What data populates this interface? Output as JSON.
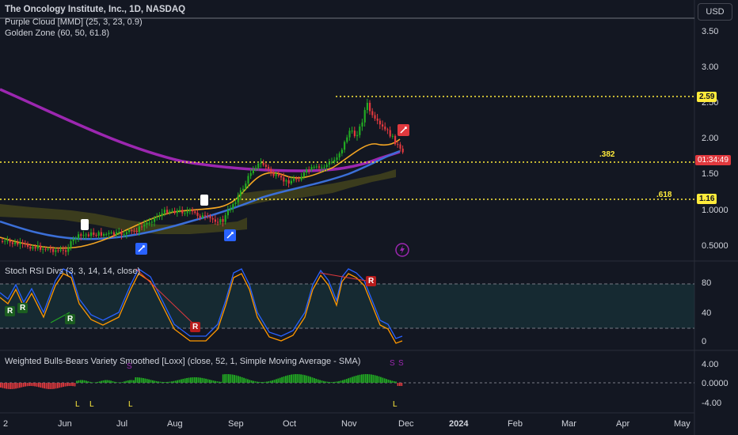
{
  "header": {
    "title": "The Oncology Institute, Inc., 1D, NASDAQ",
    "currency": "USD",
    "indicators": [
      "Purple Cloud [MMD] (25, 3, 23, 0.9)",
      "Golden Zone (60, 50, 61.8)"
    ]
  },
  "price_axis": {
    "ticks": [
      "3.50",
      "3.00",
      "2.50",
      "2.00",
      "1.50",
      "1.0000",
      "0.5000"
    ],
    "last_price": "2.59",
    "countdown": "01:34:49",
    "fib_price": "1.16"
  },
  "fib_labels": {
    "f382": ".382",
    "f618": ".618"
  },
  "stoch_panel": {
    "title": "Stoch RSI Divs (3, 3, 14, 14, close)",
    "ticks": [
      "80",
      "40",
      "0"
    ],
    "div_marks": [
      "R",
      "R",
      "R",
      "R",
      "R"
    ]
  },
  "bb_panel": {
    "title": "Weighted Bulls-Bears Variety Smoothed [Loxx] (close, 52, 1, Simple Moving Average - SMA)",
    "ticks": [
      "4.00",
      "0.0000",
      "-4.00"
    ],
    "marks_top": [
      "S",
      "S",
      "S"
    ],
    "marks_bottom": [
      "L",
      "L",
      "L",
      "L"
    ]
  },
  "time_axis": {
    "labels": [
      "2",
      "Jun",
      "Jul",
      "Aug",
      "Sep",
      "Oct",
      "Nov",
      "Dec",
      "2024",
      "Feb",
      "Mar",
      "Apr",
      "May"
    ]
  },
  "colors": {
    "background": "#131722",
    "up": "#22ab22",
    "down": "#e0393e",
    "ema_fast": "#f5a623",
    "ema_slow": "#3b6fd8",
    "purple_cloud": "#9c27b0",
    "fib": "#ffeb3b",
    "stoch_k": "#2962ff",
    "stoch_d": "#ff9800"
  },
  "icons": [
    "rocket-icon",
    "flag-icon",
    "lightning-icon"
  ]
}
